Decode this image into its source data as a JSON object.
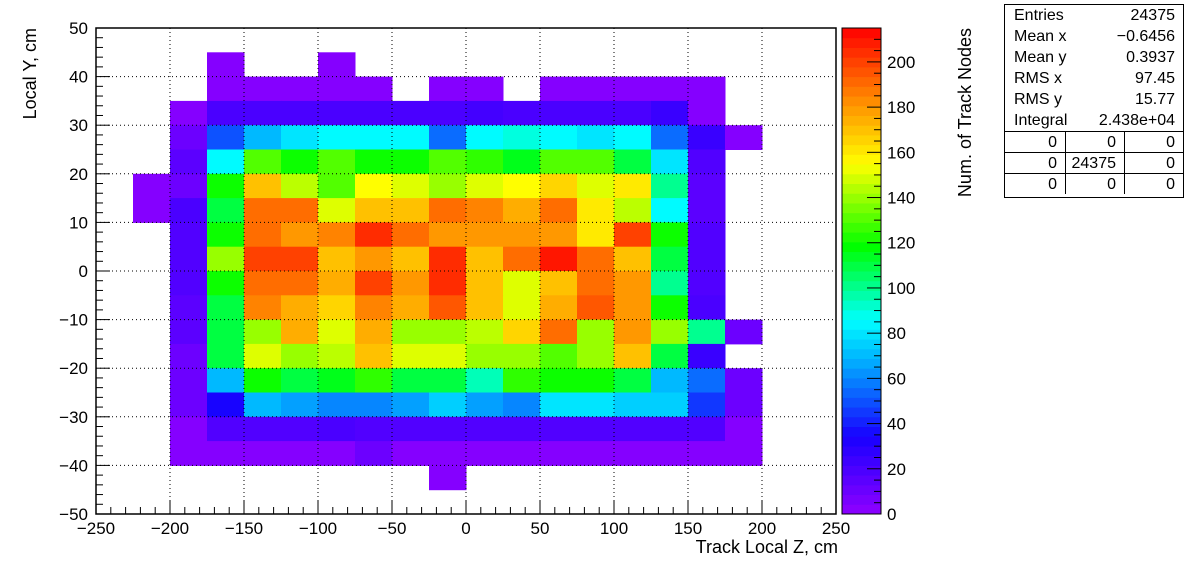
{
  "chart_data": {
    "type": "heatmap",
    "xlabel": "Track Local Z, cm",
    "ylabel": "Local Y, cm",
    "zlabel": "Num. of Track Nodes",
    "xlim": [
      -250,
      250
    ],
    "ylim": [
      -50,
      50
    ],
    "zlim": [
      0,
      215
    ],
    "x_ticks": [
      -250,
      -200,
      -150,
      -100,
      -50,
      0,
      50,
      100,
      150,
      200,
      250
    ],
    "y_ticks": [
      -50,
      -40,
      -30,
      -20,
      -10,
      0,
      10,
      20,
      30,
      40,
      50
    ],
    "z_ticks": [
      0,
      20,
      40,
      60,
      80,
      100,
      120,
      140,
      160,
      180,
      200
    ],
    "grid": true,
    "colormap": "rainbow",
    "x_bins": [
      -225,
      -200,
      -175,
      -150,
      -125,
      -100,
      -75,
      -50,
      -25,
      0,
      25,
      50,
      75,
      100,
      125,
      150,
      175,
      200
    ],
    "y_bins": [
      50,
      45,
      40,
      35,
      30,
      25,
      20,
      15,
      10,
      5,
      0,
      -5,
      -10,
      -15,
      -20,
      -25,
      -30,
      -35,
      -40,
      -45,
      -50
    ],
    "z": [
      [
        0,
        0,
        0,
        0,
        0,
        0,
        0,
        0,
        0,
        0,
        0,
        0,
        0,
        0,
        0,
        0,
        0
      ],
      [
        0,
        0,
        3,
        0,
        0,
        3,
        0,
        0,
        0,
        0,
        0,
        0,
        0,
        0,
        0,
        0,
        0
      ],
      [
        0,
        0,
        3,
        3,
        3,
        3,
        3,
        0,
        3,
        3,
        0,
        3,
        3,
        3,
        3,
        3,
        0
      ],
      [
        0,
        3,
        20,
        20,
        20,
        20,
        20,
        20,
        20,
        22,
        20,
        20,
        20,
        20,
        25,
        3,
        0
      ],
      [
        0,
        10,
        50,
        70,
        80,
        85,
        85,
        85,
        55,
        85,
        90,
        85,
        80,
        85,
        55,
        25,
        3
      ],
      [
        0,
        15,
        85,
        130,
        120,
        130,
        120,
        120,
        130,
        125,
        115,
        130,
        130,
        110,
        80,
        18,
        0
      ],
      [
        3,
        10,
        120,
        170,
        145,
        130,
        155,
        150,
        140,
        150,
        155,
        165,
        150,
        160,
        100,
        15,
        0
      ],
      [
        3,
        20,
        110,
        190,
        190,
        150,
        170,
        170,
        190,
        185,
        175,
        190,
        160,
        145,
        85,
        15,
        0
      ],
      [
        0,
        18,
        120,
        190,
        180,
        185,
        205,
        190,
        180,
        180,
        180,
        180,
        160,
        200,
        120,
        18,
        0
      ],
      [
        0,
        18,
        140,
        200,
        200,
        170,
        180,
        170,
        205,
        170,
        190,
        210,
        190,
        170,
        110,
        18,
        0
      ],
      [
        0,
        18,
        120,
        190,
        190,
        175,
        200,
        180,
        205,
        170,
        150,
        170,
        190,
        180,
        100,
        18,
        0
      ],
      [
        0,
        15,
        110,
        185,
        175,
        165,
        185,
        175,
        195,
        170,
        150,
        175,
        195,
        180,
        120,
        20,
        0
      ],
      [
        0,
        15,
        110,
        140,
        175,
        150,
        175,
        140,
        140,
        145,
        165,
        190,
        140,
        180,
        140,
        100,
        10
      ],
      [
        0,
        10,
        110,
        150,
        140,
        145,
        170,
        150,
        150,
        140,
        140,
        130,
        140,
        170,
        110,
        25,
        0
      ],
      [
        0,
        10,
        70,
        120,
        110,
        115,
        125,
        110,
        110,
        95,
        125,
        120,
        120,
        110,
        70,
        55,
        10
      ],
      [
        0,
        10,
        35,
        70,
        65,
        60,
        60,
        65,
        75,
        65,
        60,
        80,
        80,
        75,
        75,
        45,
        10
      ],
      [
        0,
        3,
        18,
        18,
        18,
        20,
        18,
        18,
        18,
        18,
        18,
        18,
        18,
        18,
        18,
        18,
        3
      ],
      [
        0,
        3,
        3,
        3,
        3,
        3,
        10,
        3,
        3,
        3,
        3,
        3,
        3,
        3,
        3,
        3,
        3
      ],
      [
        0,
        0,
        0,
        0,
        0,
        0,
        0,
        0,
        3,
        0,
        0,
        0,
        0,
        0,
        0,
        0,
        0
      ],
      [
        0,
        0,
        0,
        0,
        0,
        0,
        0,
        0,
        0,
        0,
        0,
        0,
        0,
        0,
        0,
        0,
        0
      ]
    ]
  },
  "stats": {
    "entries_label": "Entries",
    "entries": "24375",
    "meanx_label": "Mean x",
    "meanx": "−0.6456",
    "meany_label": "Mean y",
    "meany": "0.3937",
    "rmsx_label": "RMS x",
    "rmsx": "97.45",
    "rmsy_label": "RMS y",
    "rmsy": "15.77",
    "integral_label": "Integral",
    "integral": "2.438e+04",
    "grid": [
      [
        "0",
        "0",
        "0"
      ],
      [
        "0",
        "24375",
        "0"
      ],
      [
        "0",
        "0",
        "0"
      ]
    ]
  }
}
